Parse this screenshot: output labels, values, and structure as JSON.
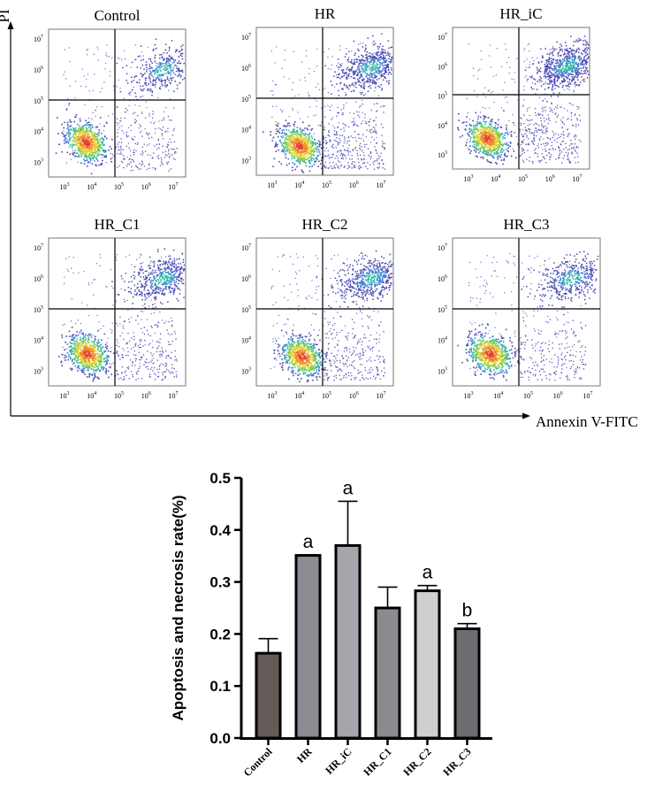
{
  "flow": {
    "y_axis_label": "PI",
    "x_axis_label": "Annexin V-FITC",
    "panels": [
      {
        "title": "Control"
      },
      {
        "title": "HR"
      },
      {
        "title": "HR_iC"
      },
      {
        "title": "HR_C1"
      },
      {
        "title": "HR_C2"
      },
      {
        "title": "HR_C3"
      }
    ],
    "y_ticks": [
      {
        "base": "10",
        "exp": "7"
      },
      {
        "base": "10",
        "exp": "6"
      },
      {
        "base": "10",
        "exp": "5"
      },
      {
        "base": "10",
        "exp": "4"
      },
      {
        "base": "10",
        "exp": "3"
      }
    ],
    "x_ticks": [
      {
        "base": "10",
        "exp": "3"
      },
      {
        "base": "10",
        "exp": "4"
      },
      {
        "base": "10",
        "exp": "5"
      },
      {
        "base": "10",
        "exp": "6"
      },
      {
        "base": "10",
        "exp": "7"
      }
    ]
  },
  "chart_data": {
    "type": "bar",
    "title": "",
    "xlabel": "",
    "ylabel": "Apoptosis and necrosis rate(%)",
    "ylim": [
      0,
      0.5
    ],
    "yticks": [
      "0.0",
      "0.1",
      "0.2",
      "0.3",
      "0.4",
      "0.5"
    ],
    "categories": [
      "Control",
      "HR",
      "HR_iC",
      "HR_C1",
      "HR_C2",
      "HR_C3"
    ],
    "values": [
      0.163,
      0.351,
      0.37,
      0.25,
      0.283,
      0.21
    ],
    "errors": [
      0.028,
      0.001,
      0.085,
      0.04,
      0.01,
      0.01
    ],
    "annotations": [
      "",
      "a",
      "a",
      "",
      "a",
      "b"
    ],
    "colors": [
      "#625b58",
      "#8e8c92",
      "#a6a5ab",
      "#8c8a8f",
      "#cfcfd1",
      "#6d6c71"
    ]
  }
}
